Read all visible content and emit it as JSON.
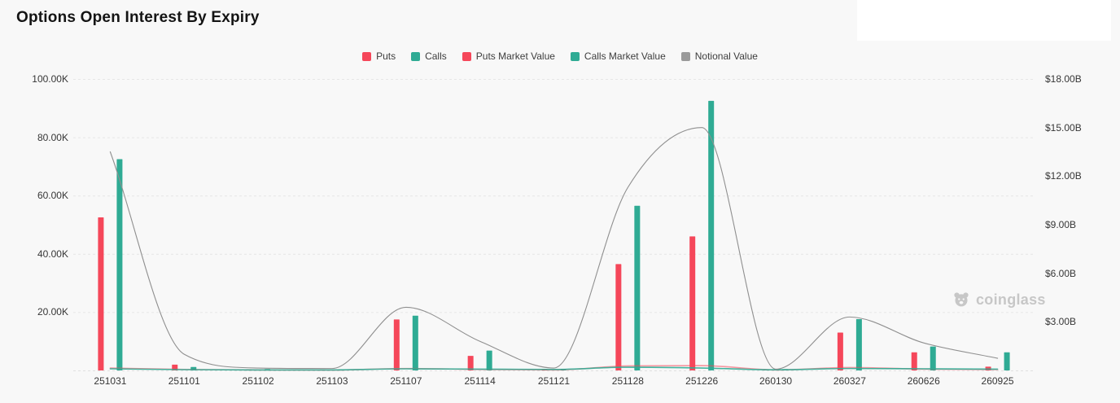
{
  "page": {
    "title": "Options Open Interest By Expiry",
    "background": "#f8f8f8"
  },
  "watermark": {
    "label": "coinglass"
  },
  "legend": {
    "items": [
      {
        "label": "Puts",
        "color": "#f5475a"
      },
      {
        "label": "Calls",
        "color": "#2fab94"
      },
      {
        "label": "Puts Market Value",
        "color": "#f5475a"
      },
      {
        "label": "Calls Market Value",
        "color": "#2fab94"
      },
      {
        "label": "Notional Value",
        "color": "#9a9a9a"
      }
    ]
  },
  "chart_data": {
    "type": "bar",
    "subtype": "grouped-bars-with-smooth-lines",
    "title": "Options Open Interest By Expiry",
    "categories": [
      "251031",
      "251101",
      "251102",
      "251103",
      "251107",
      "251114",
      "251121",
      "251128",
      "251226",
      "260130",
      "260327",
      "260626",
      "260925"
    ],
    "series": [
      {
        "name": "Puts",
        "type": "bar",
        "axis": "left",
        "color": "#f5475a",
        "values": [
          52500,
          2000,
          400,
          300,
          17500,
          5000,
          300,
          36500,
          46000,
          250,
          13000,
          6200,
          1300
        ]
      },
      {
        "name": "Calls",
        "type": "bar",
        "axis": "left",
        "color": "#2fab94",
        "values": [
          72500,
          1200,
          500,
          400,
          18800,
          6800,
          500,
          56500,
          92500,
          450,
          17600,
          8200,
          6200
        ]
      },
      {
        "name": "Puts Market Value",
        "type": "line",
        "axis": "right",
        "color": "#f5475a",
        "opacity": 0.55,
        "values": [
          0.15,
          0.06,
          0.03,
          0.02,
          0.12,
          0.06,
          0.03,
          0.28,
          0.3,
          0.03,
          0.18,
          0.08,
          0.05
        ]
      },
      {
        "name": "Calls Market Value",
        "type": "line",
        "axis": "right",
        "color": "#2fab94",
        "opacity": 0.9,
        "values": [
          0.1,
          0.05,
          0.03,
          0.03,
          0.1,
          0.08,
          0.06,
          0.2,
          0.15,
          0.04,
          0.12,
          0.1,
          0.08
        ]
      },
      {
        "name": "Notional Value",
        "type": "line",
        "axis": "right",
        "color": "#8f8f8f",
        "opacity": 1,
        "values": [
          13.5,
          1.0,
          0.15,
          0.12,
          3.9,
          1.8,
          0.15,
          11.3,
          15.0,
          0.08,
          3.3,
          1.7,
          0.75
        ]
      }
    ],
    "left_axis": {
      "max": 100000,
      "ticks": [
        {
          "label": "100.00K",
          "value": 100000
        },
        {
          "label": "80.00K",
          "value": 80000
        },
        {
          "label": "60.00K",
          "value": 60000
        },
        {
          "label": "40.00K",
          "value": 40000
        },
        {
          "label": "20.00K",
          "value": 20000
        }
      ]
    },
    "right_axis": {
      "max": 18,
      "unit": "billion USD",
      "ticks": [
        {
          "label": "$18.00B",
          "value": 18
        },
        {
          "label": "$15.00B",
          "value": 15
        },
        {
          "label": "$12.00B",
          "value": 12
        },
        {
          "label": "$9.00B",
          "value": 9
        },
        {
          "label": "$6.00B",
          "value": 6
        },
        {
          "label": "$3.00B",
          "value": 3
        }
      ]
    },
    "grid": "dashed horizontal gridlines at left-axis ticks and baseline",
    "legend_position": "top-center"
  }
}
